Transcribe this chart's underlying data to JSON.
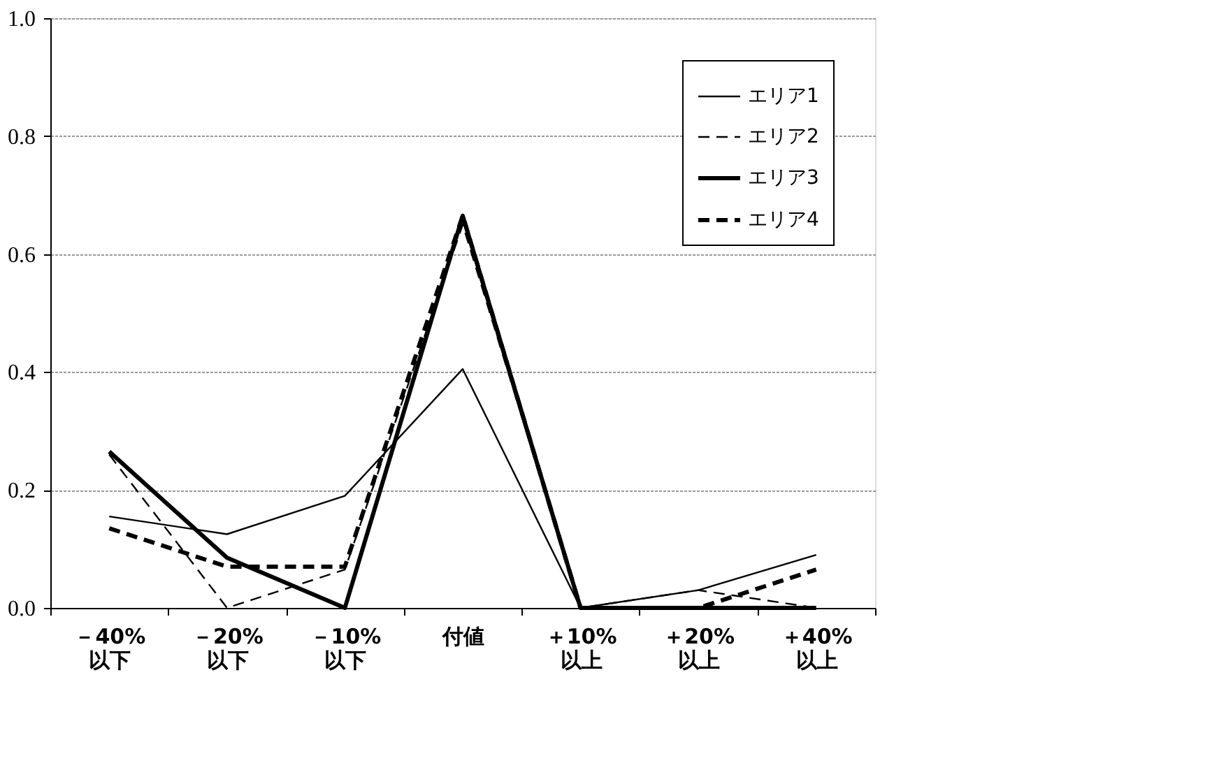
{
  "chart_data": {
    "type": "line",
    "categories": [
      "－40%\n以下",
      "－20%\n以下",
      "－10%\n以下",
      "付値",
      "＋10%\n以上",
      "＋20%\n以上",
      "＋40%\n以上"
    ],
    "series": [
      {
        "name": "エリア1",
        "color": "#000000",
        "line_style": "solid",
        "values": [
          0.155,
          0.125,
          0.19,
          0.405,
          0.0,
          0.03,
          0.09
        ]
      },
      {
        "name": "エリア2",
        "color": "#000000",
        "line_style": "dashed",
        "values": [
          0.26,
          0.0,
          0.065,
          0.65,
          0.0,
          0.03,
          0.0
        ]
      },
      {
        "name": "エリア3",
        "color": "#000000",
        "line_style": "solid",
        "values": [
          0.265,
          0.085,
          0.0,
          0.665,
          0.0,
          0.0,
          0.0
        ]
      },
      {
        "name": "エリア4",
        "color": "#000000",
        "line_style": "dashed",
        "values": [
          0.135,
          0.07,
          0.07,
          0.665,
          0.0,
          0.0,
          0.065
        ]
      }
    ],
    "ylim": [
      0,
      1.0
    ],
    "yticks": [
      {
        "value": 0,
        "label": "0.0"
      },
      {
        "value": 0.2,
        "label": "0.2"
      },
      {
        "value": 0.4,
        "label": "0.4"
      },
      {
        "value": 0.6,
        "label": "0.6"
      },
      {
        "value": 0.8,
        "label": "0.8"
      },
      {
        "value": 1.0,
        "label": "1.0"
      }
    ],
    "grid": "y",
    "legend": "top right",
    "marker": "none"
  }
}
